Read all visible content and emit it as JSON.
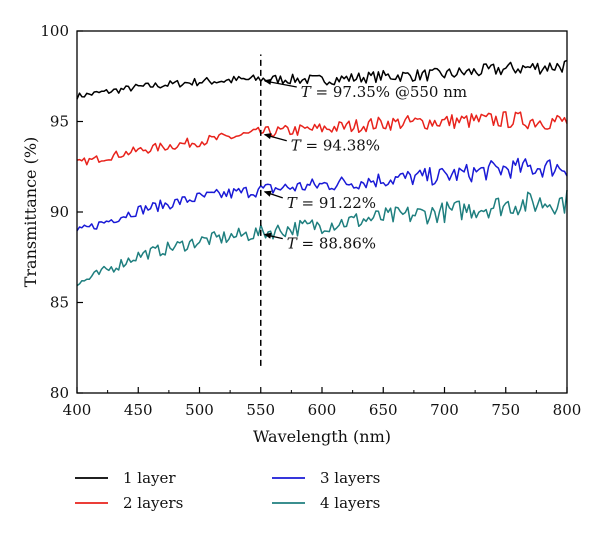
{
  "chart_data": {
    "type": "line",
    "xlabel": "Wavelength (nm)",
    "ylabel": "Transmittance (%)",
    "xlim": [
      400,
      800
    ],
    "ylim": [
      80,
      100
    ],
    "xticks": [
      400,
      450,
      500,
      550,
      600,
      650,
      700,
      750,
      800
    ],
    "yticks": [
      80,
      85,
      90,
      95,
      100
    ],
    "xtick_labels": [
      "400",
      "450",
      "500",
      "550",
      "600",
      "650",
      "700",
      "750",
      "800"
    ],
    "ytick_labels": [
      "80",
      "85",
      "90",
      "95",
      "100"
    ],
    "grid": false,
    "legend_position": "bottom",
    "marker_line": {
      "x": 550,
      "y_from": 81.5,
      "y_to": 98.7,
      "style": "dashed"
    },
    "series": [
      {
        "name": "1 layer",
        "color": "#000000",
        "x": [
          400,
          450,
          500,
          550,
          600,
          650,
          700,
          750,
          800
        ],
        "y": [
          96.4,
          96.9,
          97.2,
          97.35,
          97.3,
          97.5,
          97.6,
          97.9,
          98.1
        ]
      },
      {
        "name": "2 layers",
        "color": "#e8231c",
        "x": [
          400,
          450,
          500,
          550,
          600,
          650,
          700,
          750,
          800
        ],
        "y": [
          92.7,
          93.4,
          93.9,
          94.38,
          94.6,
          94.9,
          95.0,
          95.1,
          95.0
        ]
      },
      {
        "name": "3 layers",
        "color": "#1a1ad6",
        "x": [
          400,
          450,
          500,
          550,
          600,
          650,
          700,
          750,
          800
        ],
        "y": [
          88.9,
          90.1,
          90.8,
          91.22,
          91.5,
          91.8,
          92.0,
          92.4,
          92.5
        ]
      },
      {
        "name": "4 layers",
        "color": "#1f7f7f",
        "x": [
          400,
          450,
          500,
          550,
          600,
          650,
          700,
          750,
          800
        ],
        "y": [
          86.0,
          87.6,
          88.4,
          88.86,
          89.3,
          89.7,
          90.0,
          90.4,
          90.6
        ]
      }
    ],
    "annotations": [
      {
        "italic": "T",
        "text": " = 97.35% @550 nm",
        "x": 550,
        "y": 97.35
      },
      {
        "italic": "T",
        "text": " = 94.38%",
        "x": 550,
        "y": 94.38
      },
      {
        "italic": "T",
        "text": " = 91.22%",
        "x": 550,
        "y": 91.22
      },
      {
        "italic": "T",
        "text": " = 88.86%",
        "x": 550,
        "y": 88.86
      }
    ]
  }
}
